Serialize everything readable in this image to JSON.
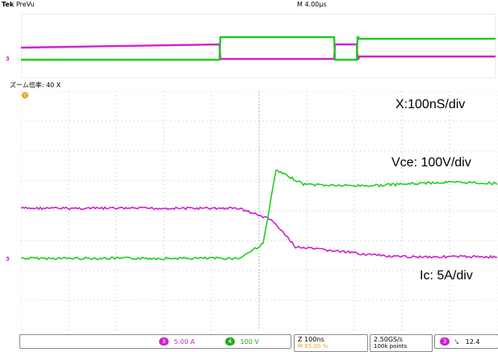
{
  "scope": {
    "brand": "Tek",
    "mode": "PreVu",
    "horizontal_scale": "M 4.00µs",
    "zoom_label": "ズーム倍率: 40 X"
  },
  "annotations": {
    "x_scale": "X:100nS/div",
    "vce_scale": "Vce: 100V/div",
    "ic_scale": "Ic: 5A/div"
  },
  "status": {
    "ch3_number": "3",
    "ch3_scale": "5.00 A",
    "ch4_number": "4",
    "ch4_scale": "100 V",
    "zoom_time": "Z 100ns",
    "zoom_percent": "M 65.00 %",
    "sample_rate": "2.50GS/s",
    "record_length": "100k points",
    "trigger_channel": "3",
    "trigger_slope": "⤥",
    "trigger_level": "12.4"
  },
  "markers": {
    "trigger": "T",
    "ch3_marker": "3"
  },
  "colors": {
    "vce": "#22cc22",
    "ic": "#cc22cc",
    "grid": "#b0b0b0",
    "marker": "#f0a020",
    "frame": "#888888"
  }
}
